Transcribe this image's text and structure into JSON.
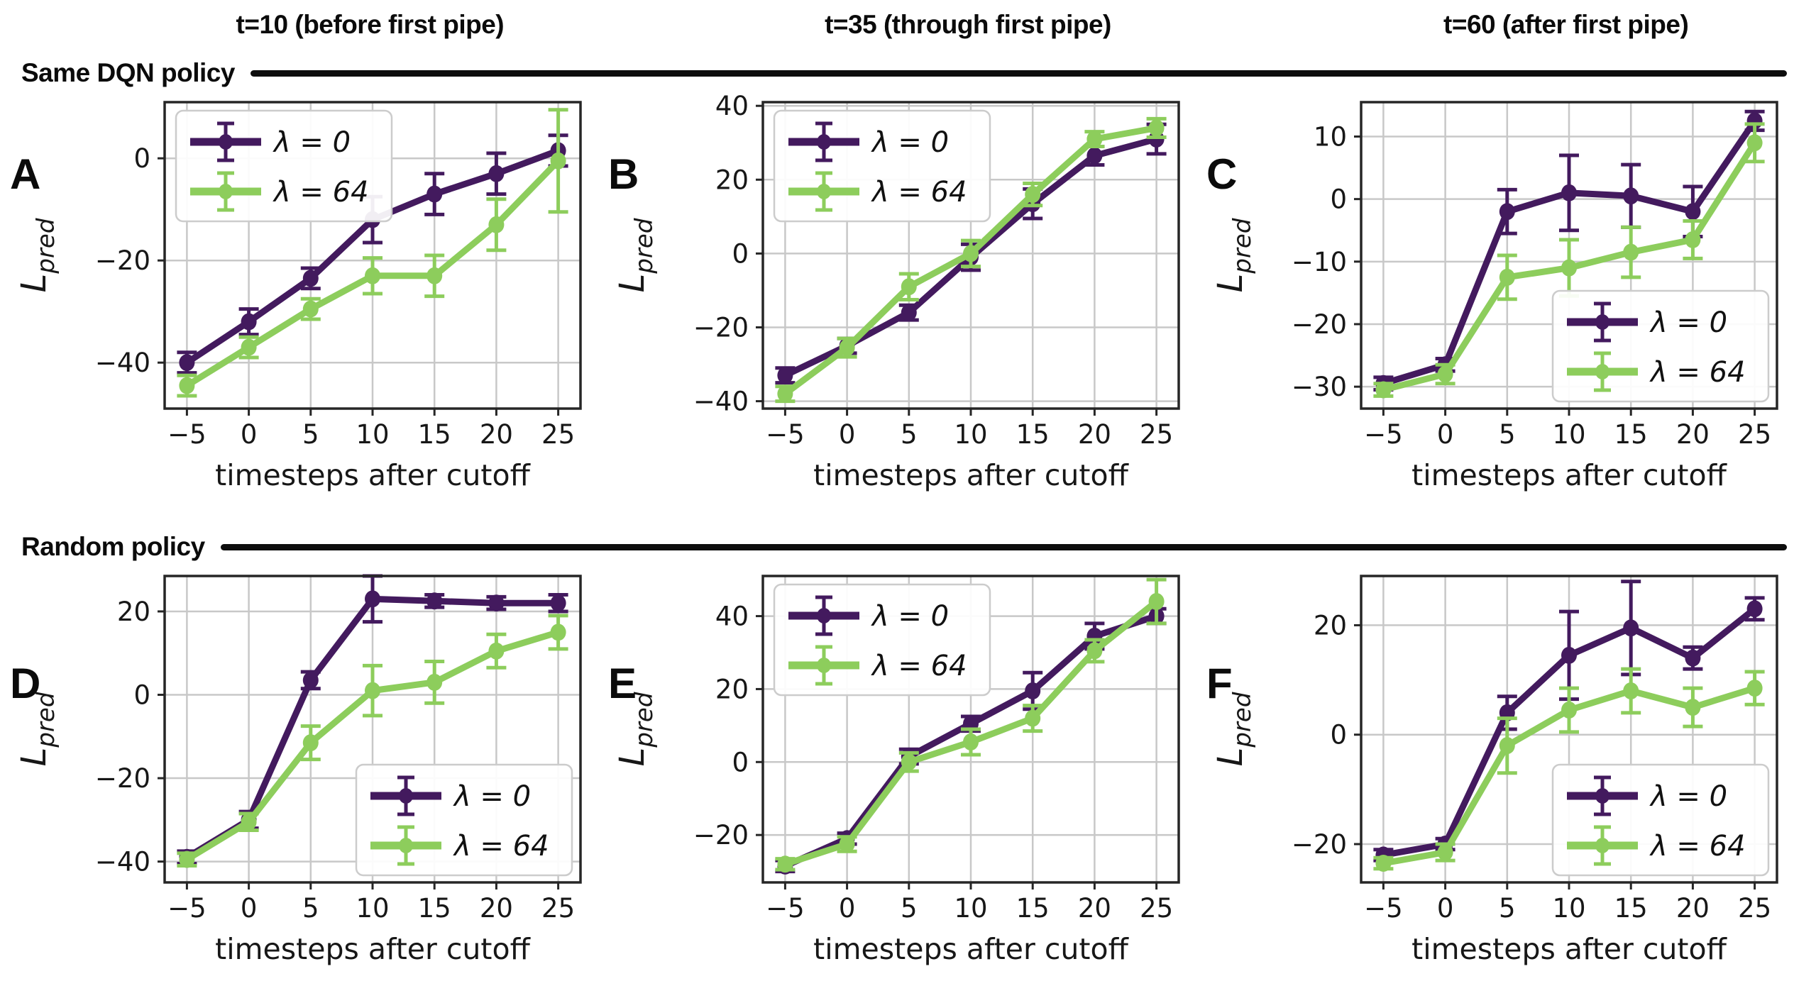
{
  "columns": [
    "t=10 (before first pipe)",
    "t=35 (through first pipe)",
    "t=60 (after first pipe)"
  ],
  "rows": [
    "Same DQN policy",
    "Random policy"
  ],
  "axis": {
    "xlabel": "timesteps after cutoff",
    "ylabel_base": "L",
    "ylabel_sub": "pred",
    "xticks": [
      -5,
      0,
      5,
      10,
      15,
      20,
      25
    ]
  },
  "colors": {
    "lambda0": "#431a5e",
    "lambda64": "#8dcd5c",
    "grid": "#c8c8c8",
    "axis": "#262626",
    "legend_border": "#cccccc"
  },
  "legend_items": [
    {
      "label": "λ = 0",
      "color_key": "lambda0"
    },
    {
      "label": "λ = 64",
      "color_key": "lambda64"
    }
  ],
  "chart_data": [
    {
      "panel_label": "A",
      "type": "line",
      "column_title": "t=10 (before first pipe)",
      "row_group": "Same DQN policy",
      "xlabel": "timesteps after cutoff",
      "ylabel": "L_pred",
      "x": [
        -5,
        0,
        5,
        10,
        15,
        20,
        25
      ],
      "ylim": [
        -49,
        11
      ],
      "yticks": [
        0,
        -20,
        -40
      ],
      "legend_pos": "upper-left",
      "grid": true,
      "series": [
        {
          "name": "λ = 0",
          "color_key": "lambda0",
          "values": [
            -40,
            -32,
            -23.5,
            -12,
            -7,
            -3,
            1.5
          ],
          "errors": [
            2,
            2.5,
            2,
            4.5,
            4,
            4,
            3
          ]
        },
        {
          "name": "λ = 64",
          "color_key": "lambda64",
          "values": [
            -44.5,
            -37,
            -29.5,
            -23,
            -23,
            -13,
            -0.5
          ],
          "errors": [
            2,
            2,
            2,
            3.5,
            4,
            5,
            10
          ]
        }
      ]
    },
    {
      "panel_label": "B",
      "type": "line",
      "column_title": "t=35 (through first pipe)",
      "row_group": "Same DQN policy",
      "xlabel": "timesteps after cutoff",
      "ylabel": "L_pred",
      "x": [
        -5,
        0,
        5,
        10,
        15,
        20,
        25
      ],
      "ylim": [
        -42,
        41
      ],
      "yticks": [
        40,
        20,
        0,
        -20,
        -40
      ],
      "legend_pos": "upper-left",
      "grid": true,
      "series": [
        {
          "name": "λ = 0",
          "color_key": "lambda0",
          "values": [
            -33,
            -25,
            -16,
            -1,
            13.5,
            26.5,
            31
          ],
          "errors": [
            2,
            2,
            2,
            3.5,
            4,
            2.5,
            4
          ]
        },
        {
          "name": "λ = 64",
          "color_key": "lambda64",
          "values": [
            -38,
            -25.5,
            -9,
            0,
            16,
            31,
            34
          ],
          "errors": [
            2,
            2.5,
            3.5,
            3.5,
            3,
            2,
            2.5
          ]
        }
      ]
    },
    {
      "panel_label": "C",
      "type": "line",
      "column_title": "t=60 (after first pipe)",
      "row_group": "Same DQN policy",
      "xlabel": "timesteps after cutoff",
      "ylabel": "L_pred",
      "x": [
        -5,
        0,
        5,
        10,
        15,
        20,
        25
      ],
      "ylim": [
        -33.5,
        15.5
      ],
      "yticks": [
        10,
        0,
        -10,
        -20,
        -30
      ],
      "legend_pos": "lower-right",
      "grid": true,
      "series": [
        {
          "name": "λ = 0",
          "color_key": "lambda0",
          "values": [
            -29.5,
            -26.5,
            -2,
            1,
            0.5,
            -2,
            12.5
          ],
          "errors": [
            1,
            1,
            3.5,
            6,
            5,
            4,
            1.5
          ]
        },
        {
          "name": "λ = 64",
          "color_key": "lambda64",
          "values": [
            -30.5,
            -28,
            -12.5,
            -11,
            -8.5,
            -6.5,
            9
          ],
          "errors": [
            1,
            1.5,
            3.5,
            4.5,
            4,
            3,
            3
          ]
        }
      ]
    },
    {
      "panel_label": "D",
      "type": "line",
      "column_title": "t=10 (before first pipe)",
      "row_group": "Random policy",
      "xlabel": "timesteps after cutoff",
      "ylabel": "L_pred",
      "x": [
        -5,
        0,
        5,
        10,
        15,
        20,
        25
      ],
      "ylim": [
        -45,
        28.5
      ],
      "yticks": [
        20,
        0,
        -20,
        -40
      ],
      "legend_pos": "lower-right",
      "grid": true,
      "series": [
        {
          "name": "λ = 0",
          "color_key": "lambda0",
          "values": [
            -39,
            -30,
            3.5,
            23,
            22.5,
            22,
            22
          ],
          "errors": [
            1.5,
            2,
            2,
            5.5,
            1.5,
            1.5,
            2
          ]
        },
        {
          "name": "λ = 64",
          "color_key": "lambda64",
          "values": [
            -39.5,
            -30.5,
            -11.5,
            1,
            3,
            10.5,
            15
          ],
          "errors": [
            1.5,
            2,
            4,
            6,
            5,
            4,
            4
          ]
        }
      ]
    },
    {
      "panel_label": "E",
      "type": "line",
      "column_title": "t=35 (through first pipe)",
      "row_group": "Random policy",
      "xlabel": "timesteps after cutoff",
      "ylabel": "L_pred",
      "x": [
        -5,
        0,
        5,
        10,
        15,
        20,
        25
      ],
      "ylim": [
        -33,
        51
      ],
      "yticks": [
        40,
        20,
        0,
        -20
      ],
      "legend_pos": "upper-left",
      "grid": true,
      "series": [
        {
          "name": "λ = 0",
          "color_key": "lambda0",
          "values": [
            -28.5,
            -21,
            1.5,
            10.5,
            19.5,
            34.5,
            40
          ],
          "errors": [
            1.5,
            1.5,
            2,
            2,
            5,
            3.5,
            2
          ]
        },
        {
          "name": "λ = 64",
          "color_key": "lambda64",
          "values": [
            -28,
            -22.5,
            0,
            5.5,
            12,
            30.5,
            44
          ],
          "errors": [
            1.5,
            2,
            2.5,
            3.5,
            3.5,
            3,
            6
          ]
        }
      ]
    },
    {
      "panel_label": "F",
      "type": "line",
      "column_title": "t=60 (after first pipe)",
      "row_group": "Random policy",
      "xlabel": "timesteps after cutoff",
      "ylabel": "L_pred",
      "x": [
        -5,
        0,
        5,
        10,
        15,
        20,
        25
      ],
      "ylim": [
        -27,
        29
      ],
      "yticks": [
        20,
        0,
        -20
      ],
      "legend_pos": "lower-right",
      "grid": true,
      "series": [
        {
          "name": "λ = 0",
          "color_key": "lambda0",
          "values": [
            -22,
            -20,
            4,
            14.5,
            19.5,
            14,
            23
          ],
          "errors": [
            1,
            1,
            3,
            8,
            8.5,
            2,
            2
          ]
        },
        {
          "name": "λ = 64",
          "color_key": "lambda64",
          "values": [
            -23.5,
            -21.5,
            -2,
            4.5,
            8,
            5,
            8.5
          ],
          "errors": [
            1,
            1.5,
            5,
            4,
            4,
            3.5,
            3
          ]
        }
      ]
    }
  ]
}
